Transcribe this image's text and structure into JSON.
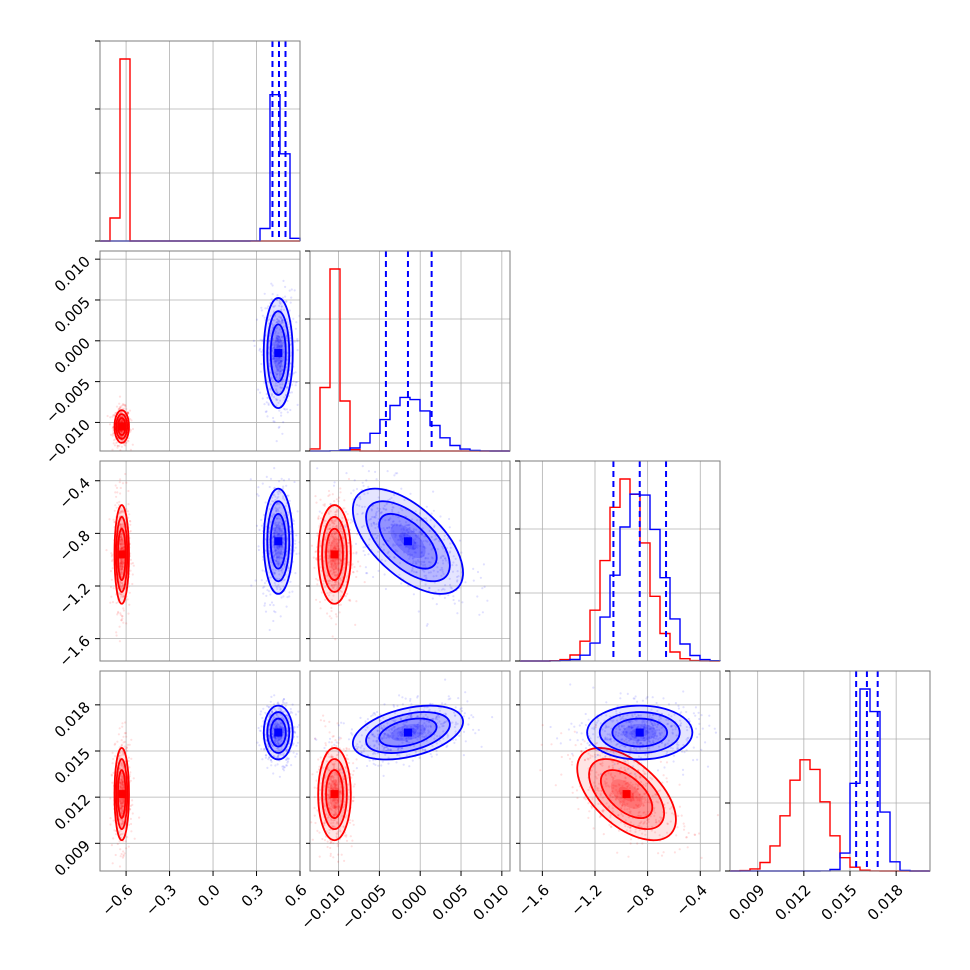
{
  "chart_data": {
    "type": "corner",
    "grid": true,
    "colors": {
      "series_a": "#ff0000",
      "series_b": "#0000ff",
      "axes": "#7f7f7f",
      "grid": "#b0b0b0"
    },
    "series": [
      {
        "color": "#ff0000",
        "mean": [
          -0.63,
          -0.0105,
          -0.96,
          0.0122
        ],
        "sd": [
          0.02,
          0.0008,
          0.15,
          0.0012
        ],
        "corr": {
          "0-1": 0.0,
          "0-2": 0.0,
          "0-3": 0.0,
          "1-2": 0.0,
          "1-3": 0.0,
          "2-3": -0.55
        }
      },
      {
        "color": "#0000ff",
        "mean": [
          0.45,
          -0.0015,
          -0.86,
          0.0162
        ],
        "sd": [
          0.04,
          0.0027,
          0.16,
          0.0007
        ],
        "corr": {
          "0-1": 0.0,
          "0-2": 0.0,
          "0-3": 0.0,
          "1-2": -0.6,
          "1-3": 0.4,
          "2-3": 0.0
        }
      }
    ],
    "quantile_lines": [
      [
        0.41,
        0.455,
        0.5
      ],
      [
        -0.0042,
        -0.0015,
        0.0014
      ],
      [
        -1.06,
        -0.86,
        -0.66
      ],
      [
        0.0154,
        0.0161,
        0.0168
      ]
    ],
    "params": [
      {
        "range": [
          -0.78,
          0.6
        ],
        "ticks": [
          -0.6,
          -0.3,
          0.0,
          0.3,
          0.6
        ],
        "labels": [
          "−0.6",
          "−0.3",
          "0.0",
          "0.3",
          "0.6"
        ]
      },
      {
        "range": [
          -0.0135,
          0.011
        ],
        "ticks": [
          -0.01,
          -0.005,
          0.0,
          0.005,
          0.01
        ],
        "labels": [
          "−0.010",
          "−0.005",
          "0.000",
          "0.005",
          "0.010"
        ]
      },
      {
        "range": [
          -1.77,
          -0.25
        ],
        "ticks": [
          -1.6,
          -1.2,
          -0.8,
          -0.4
        ],
        "labels": [
          "−1.6",
          "−1.2",
          "−0.8",
          "−0.4"
        ]
      },
      {
        "range": [
          0.0072,
          0.0202
        ],
        "ticks": [
          0.009,
          0.012,
          0.015,
          0.018
        ],
        "labels": [
          "0.009",
          "0.012",
          "0.015",
          "0.018"
        ]
      }
    ]
  }
}
